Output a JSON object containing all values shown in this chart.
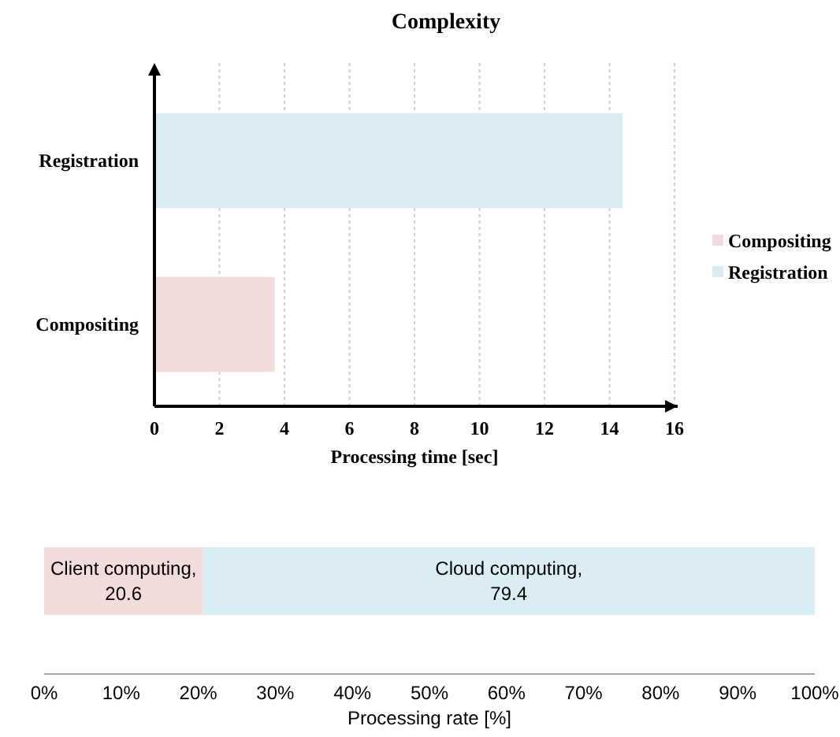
{
  "chart_data": [
    {
      "type": "bar",
      "orientation": "horizontal",
      "title": "Complexity",
      "xlabel": "Processing time [sec]",
      "categories": [
        "Registration",
        "Compositing"
      ],
      "series": [
        {
          "name": "Compositing",
          "color": "#f2dcdb",
          "values": [
            null,
            3.7
          ]
        },
        {
          "name": "Registration",
          "color": "#daedf3",
          "values": [
            14.4,
            null
          ]
        }
      ],
      "xlim": [
        0,
        16
      ],
      "xticks": [
        0,
        2,
        4,
        6,
        8,
        10,
        12,
        14,
        16
      ],
      "grid": "x",
      "legend": "right"
    },
    {
      "type": "bar",
      "orientation": "horizontal",
      "stacked": true,
      "xlabel": "Processing rate [%]",
      "categories": [
        null
      ],
      "series": [
        {
          "name": "Client computing,",
          "color": "#f2dcdb",
          "values": [
            20.6
          ]
        },
        {
          "name": "Cloud computing,",
          "color": "#daedf3",
          "values": [
            79.4
          ]
        }
      ],
      "xlim": [
        0,
        100
      ],
      "xticks": [
        {
          "value": 0,
          "label": "0%"
        },
        {
          "value": 10,
          "label": "10%"
        },
        {
          "value": 20,
          "label": "20%"
        },
        {
          "value": 30,
          "label": "30%"
        },
        {
          "value": 40,
          "label": "40%"
        },
        {
          "value": 50,
          "label": "50%"
        },
        {
          "value": 60,
          "label": "60%"
        },
        {
          "value": 70,
          "label": "70%"
        },
        {
          "value": 80,
          "label": "80%"
        },
        {
          "value": 90,
          "label": "90%"
        },
        {
          "value": 100,
          "label": "100%"
        }
      ],
      "tick_labels": "x",
      "data_labels": true
    }
  ]
}
